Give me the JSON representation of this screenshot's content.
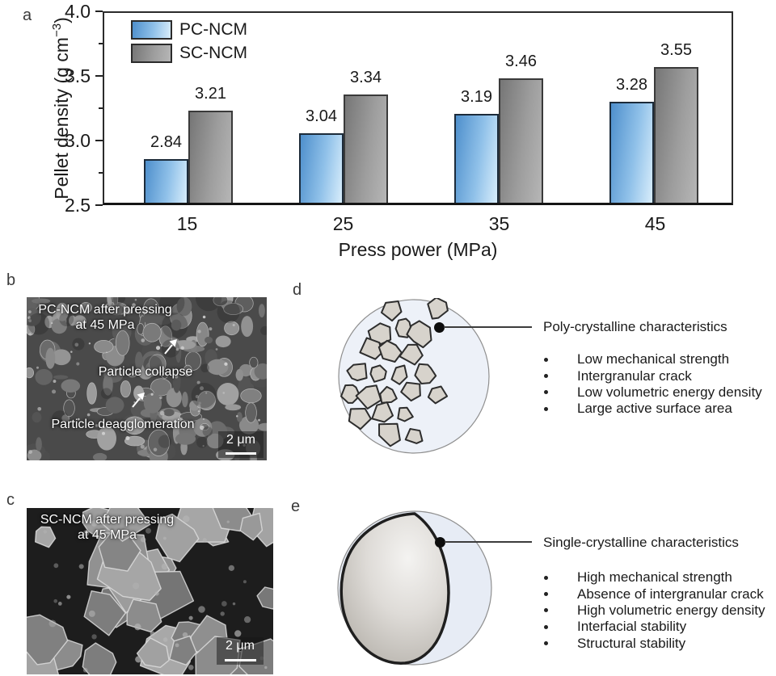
{
  "panels": {
    "a": "a",
    "b": "b",
    "c": "c",
    "d": "d",
    "e": "e"
  },
  "chart_data": {
    "type": "bar",
    "title": "",
    "xlabel": "Press power (MPa)",
    "ylabel": "Pellet density (g cm⁻³)",
    "ylabel_parts": {
      "main": "Pellet density (g cm",
      "sup": "−3",
      "end": ")"
    },
    "categories": [
      "15",
      "25",
      "35",
      "45"
    ],
    "series": [
      {
        "name": "PC-NCM",
        "values": [
          2.84,
          3.04,
          3.19,
          3.28
        ],
        "color_start": "#4e8fcc",
        "color_mid": "#90c1e9",
        "color_end": "#d8edfb",
        "border": "#1c2b3a"
      },
      {
        "name": "SC-NCM",
        "values": [
          3.21,
          3.34,
          3.46,
          3.55
        ],
        "color_start": "#767676",
        "color_mid": "#9d9d9d",
        "color_end": "#b6b6b6",
        "border": "#3a3a3a"
      }
    ],
    "ylim": [
      2.5,
      4.0
    ],
    "yticks": [
      4.0,
      3.5,
      3.0,
      2.5
    ],
    "yticks_minor": [
      3.75,
      3.25,
      2.75
    ],
    "value_label_decimals": 2,
    "legend_position": "top-left",
    "grid": false
  },
  "panel_b": {
    "title_line1": "PC-NCM after pressing",
    "title_line2": "at 45 MPa",
    "annotation_collapse": "Particle collapse",
    "annotation_deagglomeration": "Particle deagglomeration",
    "scale_bar_label": "2 μm"
  },
  "panel_c": {
    "title_line1": "SC-NCM after pressing",
    "title_line2": "at 45 MPa",
    "scale_bar_label": "2 μm"
  },
  "panel_d": {
    "heading": "Poly-crystalline characteristics",
    "bullets": [
      "Low mechanical strength",
      "Intergranular crack",
      "Low volumetric energy density",
      "Large active surface area"
    ]
  },
  "panel_e": {
    "heading": "Single-crystalline characteristics",
    "bullets": [
      "High mechanical strength",
      "Absence of intergranular crack",
      "High volumetric energy density",
      "Interfacial stability",
      "Structural stability"
    ]
  }
}
